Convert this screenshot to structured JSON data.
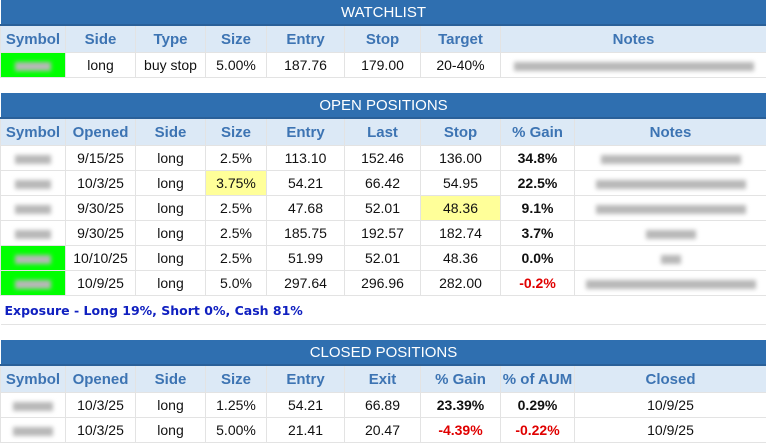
{
  "watchlist": {
    "title": "WATCHLIST",
    "headers": [
      "Symbol",
      "Side",
      "Type",
      "Size",
      "Entry",
      "Stop",
      "Target",
      "Notes"
    ],
    "rows": [
      {
        "side": "long",
        "type": "buy stop",
        "size": "5.00%",
        "entry": "187.76",
        "stop": "179.00",
        "target": "20-40%"
      }
    ]
  },
  "open": {
    "title": "OPEN POSITIONS",
    "headers": [
      "Symbol",
      "Opened",
      "Side",
      "Size",
      "Entry",
      "Last",
      "Stop",
      "% Gain",
      "Notes"
    ],
    "rows": [
      {
        "opened": "9/15/25",
        "side": "long",
        "size": "2.5%",
        "entry": "113.10",
        "last": "152.46",
        "stop": "136.00",
        "gain": "34.8%"
      },
      {
        "opened": "10/3/25",
        "side": "long",
        "size": "3.75%",
        "entry": "54.21",
        "last": "66.42",
        "stop": "54.95",
        "gain": "22.5%"
      },
      {
        "opened": "9/30/25",
        "side": "long",
        "size": "2.5%",
        "entry": "47.68",
        "last": "52.01",
        "stop": "48.36",
        "gain": "9.1%"
      },
      {
        "opened": "9/30/25",
        "side": "long",
        "size": "2.5%",
        "entry": "185.75",
        "last": "192.57",
        "stop": "182.74",
        "gain": "3.7%"
      },
      {
        "opened": "10/10/25",
        "side": "long",
        "size": "2.5%",
        "entry": "51.99",
        "last": "52.01",
        "stop": "48.36",
        "gain": "0.0%"
      },
      {
        "opened": "10/9/25",
        "side": "long",
        "size": "5.0%",
        "entry": "297.64",
        "last": "296.96",
        "stop": "282.00",
        "gain": "-0.2%"
      }
    ]
  },
  "exposure": "Exposure - Long 19%, Short 0%, Cash 81%",
  "closed": {
    "title": "CLOSED POSITIONS",
    "headers": [
      "Symbol",
      "Opened",
      "Side",
      "Size",
      "Entry",
      "Exit",
      "% Gain",
      "% of AUM",
      "Closed"
    ],
    "rows": [
      {
        "opened": "10/3/25",
        "side": "long",
        "size": "1.25%",
        "entry": "54.21",
        "exit": "66.89",
        "gain": "23.39%",
        "aum": "0.29%",
        "closed": "10/9/25"
      },
      {
        "opened": "10/3/25",
        "side": "long",
        "size": "5.00%",
        "entry": "21.41",
        "exit": "20.47",
        "gain": "-4.39%",
        "aum": "-0.22%",
        "closed": "10/9/25"
      }
    ]
  },
  "colors": {
    "header": "#2f6fb0",
    "highlight_green": "#00ff00",
    "highlight_yellow": "#ffff99",
    "negative": "#e00000",
    "exposure": "#1020c0"
  }
}
